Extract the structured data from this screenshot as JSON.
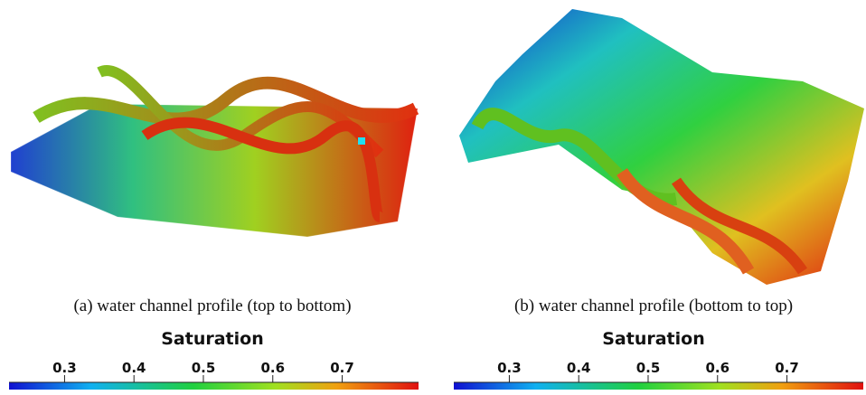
{
  "panels": [
    {
      "caption": "(a) water channel profile (top to bottom)",
      "colorbar": {
        "title": "Saturation",
        "range": [
          0.22,
          0.81
        ],
        "ticks": [
          0.3,
          0.4,
          0.5,
          0.6,
          0.7
        ]
      }
    },
    {
      "caption": "(b) water channel profile (bottom to top)",
      "colorbar": {
        "title": "Saturation",
        "range": [
          0.22,
          0.81
        ],
        "ticks": [
          0.3,
          0.4,
          0.5,
          0.6,
          0.7
        ]
      }
    }
  ]
}
